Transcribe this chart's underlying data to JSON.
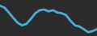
{
  "x": [
    0,
    1,
    2,
    3,
    4,
    5,
    6,
    7,
    8,
    9,
    10,
    11,
    12,
    13,
    14,
    15,
    16,
    17,
    18,
    19,
    20,
    21,
    22
  ],
  "y": [
    9.0,
    8.5,
    7.2,
    5.8,
    4.5,
    3.8,
    4.2,
    5.5,
    7.0,
    7.8,
    8.0,
    7.5,
    7.8,
    7.2,
    7.0,
    6.5,
    5.0,
    3.8,
    3.5,
    2.8,
    2.0,
    2.3,
    2.8
  ],
  "line_color": "#4aaed4",
  "linewidth": 2.0,
  "background_color": "#2b2b2b",
  "ylim": [
    1.0,
    10.5
  ],
  "xlim": [
    0,
    22
  ]
}
